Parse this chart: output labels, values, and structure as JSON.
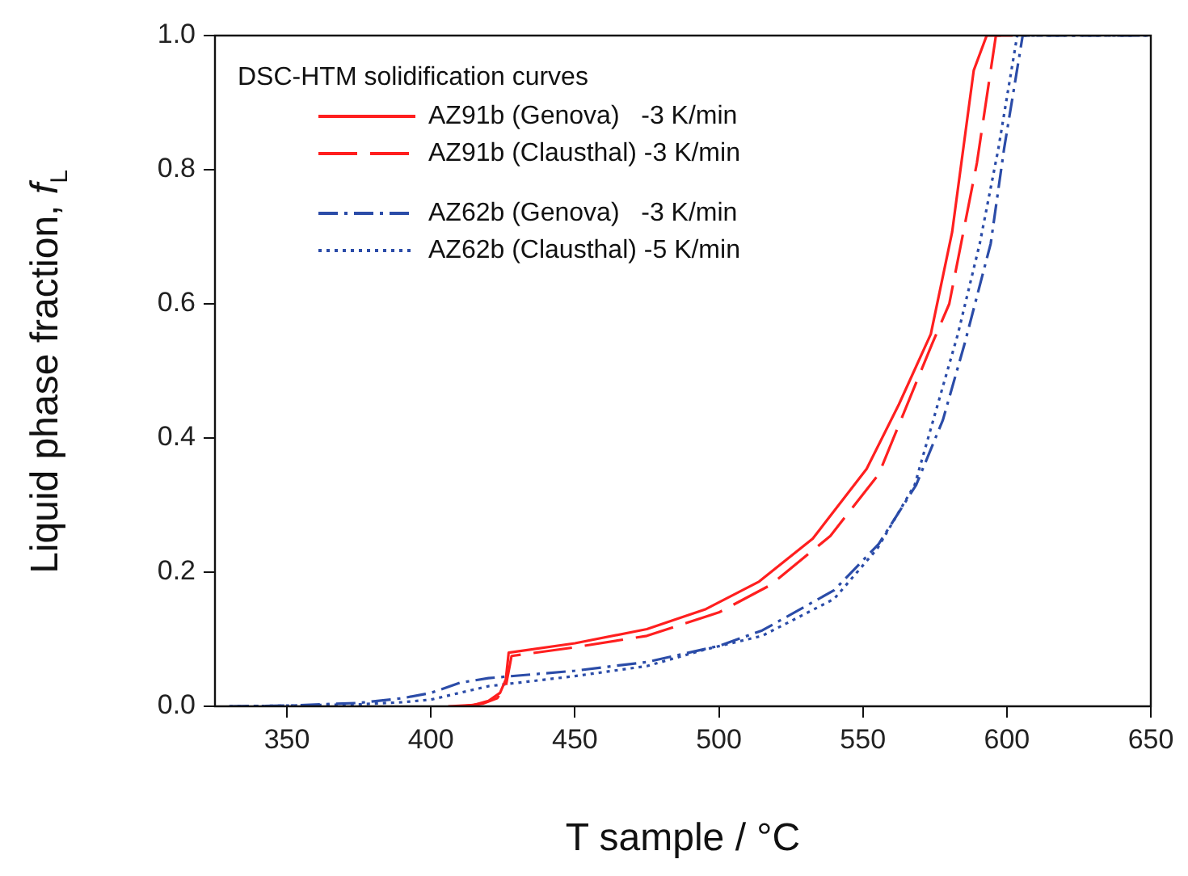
{
  "chart_data": {
    "type": "line",
    "xlabel": "T sample / °C",
    "ylabel": "Liquid phase fraction, f$_{L}$",
    "legend_title": "DSC-HTM solidification curves",
    "legend": "top left",
    "grid": false,
    "marker": "none",
    "xlim": [
      325,
      650
    ],
    "xticks": [
      350,
      400,
      450,
      500,
      550,
      600,
      650
    ],
    "ylim": [
      0,
      1
    ],
    "yticks": [
      {
        "value": 0,
        "label": "0.0"
      },
      {
        "value": 0.2,
        "label": "0.2"
      },
      {
        "value": 0.4,
        "label": "0.4"
      },
      {
        "value": 0.6,
        "label": "0.6"
      },
      {
        "value": 0.8,
        "label": "0.8"
      },
      {
        "value": 1,
        "label": "1.0"
      }
    ],
    "series": [
      {
        "name": "AZ91b (Genova)   -3 K/min",
        "color": "#ff1f1f",
        "line_style": "solid",
        "x": [
          406,
          415,
          420,
          424,
          426,
          427,
          450,
          475,
          495.5,
          514,
          532.6,
          551.3,
          562.5,
          573.6,
          581,
          588.5,
          593,
          602
        ],
        "values": [
          0,
          0.002,
          0.008,
          0.02,
          0.04,
          0.08,
          0.094,
          0.115,
          0.145,
          0.186,
          0.25,
          0.354,
          0.45,
          0.555,
          0.707,
          0.948,
          1,
          1
        ]
      },
      {
        "name": "AZ91b (Clausthal) -3 K/min",
        "color": "#ff1f1f",
        "line_style": "dashed",
        "x": [
          411,
          418,
          423,
          426,
          428,
          450,
          475,
          500,
          518,
          538.7,
          555.5,
          574,
          580,
          589.6,
          596.2,
          602
        ],
        "values": [
          0,
          0.004,
          0.012,
          0.03,
          0.075,
          0.088,
          0.105,
          0.14,
          0.181,
          0.254,
          0.346,
          0.54,
          0.6,
          0.81,
          1,
          1
        ]
      },
      {
        "name": "AZ62b (Genova)   -3 K/min",
        "color": "#2b4ca8",
        "line_style": "dashdot",
        "x": [
          330,
          350,
          375,
          390,
          400,
          410,
          420,
          450,
          475,
          500,
          515,
          540,
          555.5,
          568.5,
          577.8,
          585.3,
          594.4,
          599,
          605.5,
          650
        ],
        "values": [
          0,
          0.001,
          0.005,
          0.012,
          0.02,
          0.035,
          0.042,
          0.053,
          0.066,
          0.09,
          0.113,
          0.173,
          0.242,
          0.33,
          0.427,
          0.54,
          0.69,
          0.83,
          1,
          1
        ]
      },
      {
        "name": "AZ62b (Clausthal) -5 K/min",
        "color": "#2b4ca8",
        "line_style": "dotted",
        "x": [
          330,
          350,
          375,
          390,
          400,
          410,
          420,
          450,
          475,
          495.5,
          515,
          540,
          555,
          568,
          583,
          590.6,
          597,
          603.6,
          650
        ],
        "values": [
          0,
          0.001,
          0.003,
          0.006,
          0.01,
          0.02,
          0.03,
          0.045,
          0.06,
          0.085,
          0.105,
          0.16,
          0.235,
          0.33,
          0.555,
          0.69,
          0.83,
          1,
          1
        ]
      }
    ]
  }
}
